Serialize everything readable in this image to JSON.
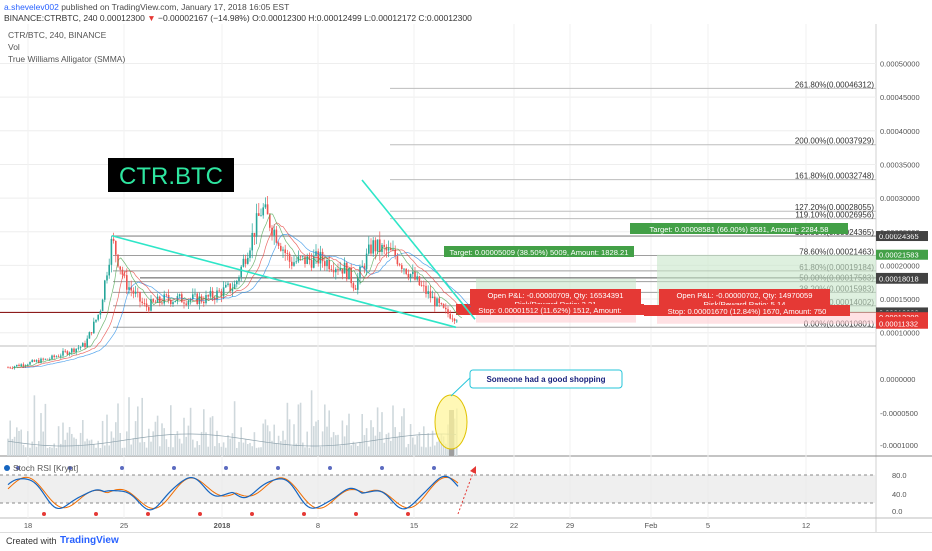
{
  "header": {
    "author": "a.shevelev002",
    "published": "published on TradingView.com, January 17, 2018 16:05 EST",
    "symbol_line": "BINANCE:CTRBTC, 240",
    "open": "0.00012300",
    "change": "−0.00002167 (−14.98%)",
    "ohlc": "O:0.00012300 H:0.00012499 L:0.00012172 C:0.00012300"
  },
  "legend": {
    "title": "CTR/BTC, 240, BINANCE",
    "vol": "Vol",
    "alligator": "True Williams Alligator (SMMA)"
  },
  "badge": "CTR.BTC",
  "annotation": "Someone had a good shopping",
  "stoch_label": "Stoch RSI [Krypt]",
  "fib_levels": [
    {
      "label": "261.80%(0.00046312)",
      "price": 0.00046312
    },
    {
      "label": "200.00%(0.00037929)",
      "price": 0.00037929
    },
    {
      "label": "161.80%(0.00032748)",
      "price": 0.00032748
    },
    {
      "label": "127.20%(0.00028055)",
      "price": 0.00028055
    },
    {
      "label": "119.10%(0.00026956)",
      "price": 0.00026956
    },
    {
      "label": "100.00%(0.00024365)",
      "price": 0.00024365
    },
    {
      "label": "78.60%(0.00021463)",
      "price": 0.00021463
    },
    {
      "label": "61.80%(0.00019184)",
      "price": 0.00019184
    },
    {
      "label": "50.00%(0.00017583)",
      "price": 0.00017583
    },
    {
      "label": "38.20%(0.00015983)",
      "price": 0.00015983
    },
    {
      "label": "23.60%(0.00014002)",
      "price": 0.00014002
    },
    {
      "label": "0.00%(0.00010801)",
      "price": 0.00010801
    }
  ],
  "positions": {
    "left": {
      "target": "Target: 0.00005009 (38.50%) 5009, Amount: 1828.21",
      "pnl": "Open P&L: -0.00000709, Qty: 16534391",
      "rr": "Risk/Reward Ratio: 3.31",
      "stop": "Stop: 0.00001512 (11.62%) 1512, Amount:"
    },
    "right": {
      "target": "Target: 0.00008581 (66.00%) 8581, Amount: 2284.58",
      "pnl": "Open P&L: -0.00000702, Qty: 14970059",
      "rr": "Risk/Reward Ratio: 5.14",
      "stop": "Stop: 0.00001670 (12.84%) 1670, Amount: 750"
    }
  },
  "price_axis_ticks": [
    "0.00050000",
    "0.00045000",
    "0.00040000",
    "0.00035000",
    "0.00030000",
    "0.00025000",
    "0.00020000",
    "0.00015000",
    "0.00010000"
  ],
  "price_badges": [
    {
      "text": "0.00024365",
      "color": "#424242",
      "price": 0.00024365
    },
    {
      "text": "0.00021583",
      "color": "#43a047",
      "price": 0.00021583
    },
    {
      "text": "0.00018139",
      "color": "#424242",
      "price": 0.00018139
    },
    {
      "text": "0.00018018",
      "color": "#424242",
      "price": 0.00018018
    },
    {
      "text": "0.00013009",
      "color": "#424242",
      "price": 0.00013009
    },
    {
      "text": "0.00013002",
      "color": "#424242",
      "price": 0.00013002
    },
    {
      "text": "0.00012461",
      "color": "#424242",
      "price": 0.00012461
    },
    {
      "text": "0.00012300",
      "color": "#e53935",
      "price": 0.000123
    },
    {
      "text": "02:54:18",
      "color": "#e53935",
      "price": 0.000116
    },
    {
      "text": "0.00011497",
      "color": "#e53935",
      "price": 0.00011497
    },
    {
      "text": "0.00011332",
      "color": "#e53935",
      "price": 0.00011332
    }
  ],
  "vol_axis_ticks": [
    "0.0000000",
    "-0.0000500",
    "-0.0001000"
  ],
  "stoch_axis_ticks": [
    "80.0",
    "40.0",
    "0.0"
  ],
  "x_axis_labels": [
    "18",
    "25",
    "2018",
    "8",
    "15",
    "22",
    "29",
    "Feb",
    "5",
    "12"
  ],
  "footer": {
    "created": "Created with",
    "brand": "TradingView"
  },
  "colors": {
    "up": "#26a69a",
    "down": "#ef5350",
    "trend": "#2ee6c8",
    "target": "#43a047",
    "stop": "#e53935",
    "stoch_k": "#1565c0",
    "stoch_d": "#ef6c00"
  },
  "chart_data": {
    "type": "candlestick",
    "title": "CTR/BTC, 240, BINANCE",
    "timeframe": "240",
    "last_close": 0.000123,
    "ylim": [
      7e-05,
      0.00051
    ],
    "x_ticks": [
      "18",
      "25",
      "2018",
      "8",
      "15",
      "22",
      "29",
      "Feb",
      "5",
      "12"
    ],
    "fib_retracement": {
      "high": 0.00024365,
      "low": 0.00010801
    },
    "series": [
      {
        "name": "Stoch RSI",
        "range": [
          0,
          100
        ],
        "levels": [
          80,
          20
        ]
      }
    ]
  }
}
